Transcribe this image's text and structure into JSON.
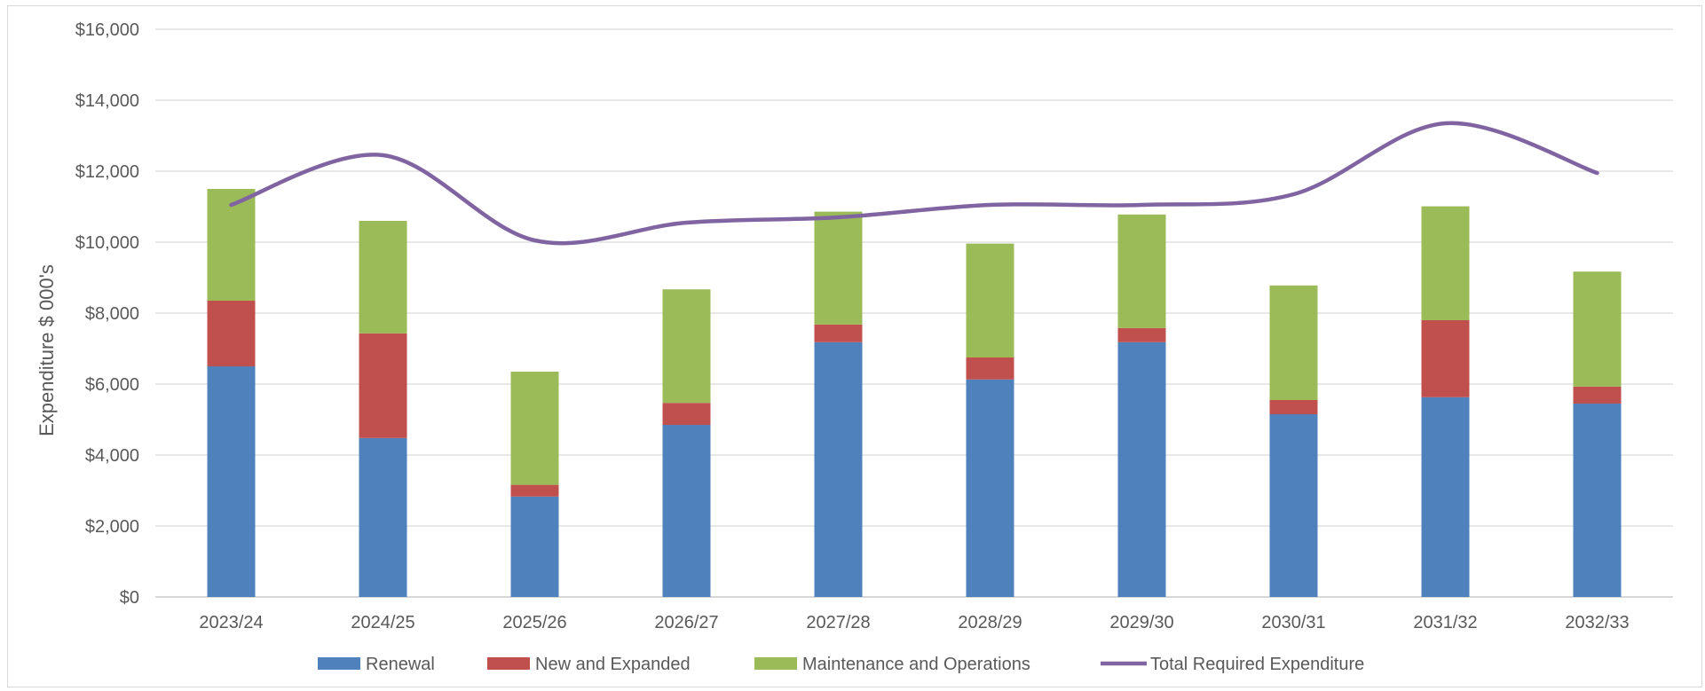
{
  "chart_data": {
    "type": "bar",
    "stacked": true,
    "title": "",
    "xlabel": "",
    "ylabel": "Expenditure $ 000's",
    "ylim": [
      0,
      16000
    ],
    "yticks": [
      0,
      2000,
      4000,
      6000,
      8000,
      10000,
      12000,
      14000,
      16000
    ],
    "ytick_labels": [
      "$0",
      "$2,000",
      "$4,000",
      "$6,000",
      "$8,000",
      "$10,000",
      "$12,000",
      "$14,000",
      "$16,000"
    ],
    "grid": true,
    "legend_position": "bottom",
    "categories": [
      "2023/24",
      "2024/25",
      "2025/26",
      "2026/27",
      "2027/28",
      "2028/29",
      "2029/30",
      "2030/31",
      "2031/32",
      "2032/33"
    ],
    "series": [
      {
        "name": "Renewal",
        "kind": "bar",
        "color": "#4f81bd",
        "values": [
          6500,
          4480,
          2830,
          4850,
          7180,
          6130,
          7180,
          5150,
          5630,
          5450
        ]
      },
      {
        "name": "New and Expanded",
        "kind": "bar",
        "color": "#c0504d",
        "values": [
          1850,
          2950,
          330,
          620,
          500,
          620,
          400,
          400,
          2170,
          480
        ]
      },
      {
        "name": "Maintenance and Operations",
        "kind": "bar",
        "color": "#9bbb59",
        "values": [
          3150,
          3170,
          3190,
          3200,
          3180,
          3210,
          3200,
          3230,
          3210,
          3240
        ]
      },
      {
        "name": "Total Required Expenditure",
        "kind": "line",
        "color": "#8064a2",
        "values": [
          11050,
          12450,
          10050,
          10550,
          10700,
          11050,
          11050,
          11350,
          13350,
          11950
        ]
      }
    ]
  }
}
